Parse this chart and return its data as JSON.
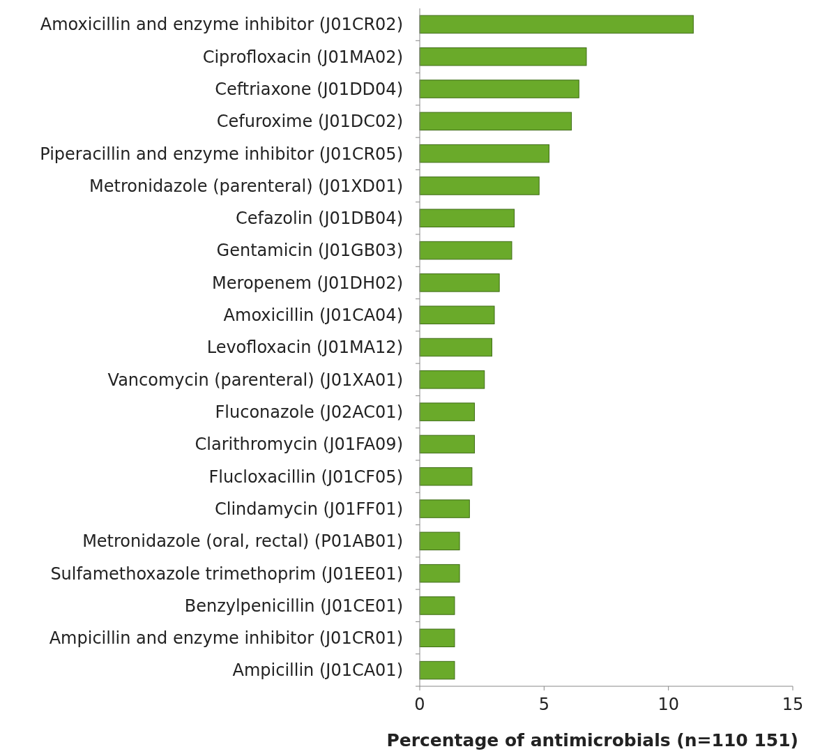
{
  "chart_data": {
    "type": "bar",
    "orientation": "horizontal",
    "xlabel": "Percentage of antimicrobials (n=110 151)",
    "categories": [
      "Amoxicillin and enzyme inhibitor (J01CR02)",
      "Ciprofloxacin (J01MA02)",
      "Ceftriaxone (J01DD04)",
      "Cefuroxime (J01DC02)",
      "Piperacillin and enzyme inhibitor (J01CR05)",
      "Metronidazole (parenteral) (J01XD01)",
      "Cefazolin (J01DB04)",
      "Gentamicin (J01GB03)",
      "Meropenem (J01DH02)",
      "Amoxicillin (J01CA04)",
      "Levofloxacin (J01MA12)",
      "Vancomycin (parenteral) (J01XA01)",
      "Fluconazole (J02AC01)",
      "Clarithromycin (J01FA09)",
      "Flucloxacillin (J01CF05)",
      "Clindamycin (J01FF01)",
      "Metronidazole (oral, rectal) (P01AB01)",
      "Sulfamethoxazole trimethoprim (J01EE01)",
      "Benzylpenicillin (J01CE01)",
      "Ampicillin and enzyme inhibitor (J01CR01)",
      "Ampicillin (J01CA01)"
    ],
    "values": [
      11.0,
      6.7,
      6.4,
      6.1,
      5.2,
      4.8,
      3.8,
      3.7,
      3.2,
      3.0,
      2.9,
      2.6,
      2.2,
      2.2,
      2.1,
      2.0,
      1.6,
      1.6,
      1.4,
      1.4,
      1.4
    ],
    "color": "#6aaa2a",
    "xlim": [
      0,
      15
    ],
    "xticks": [
      0,
      5,
      10,
      15
    ],
    "grid": false
  }
}
